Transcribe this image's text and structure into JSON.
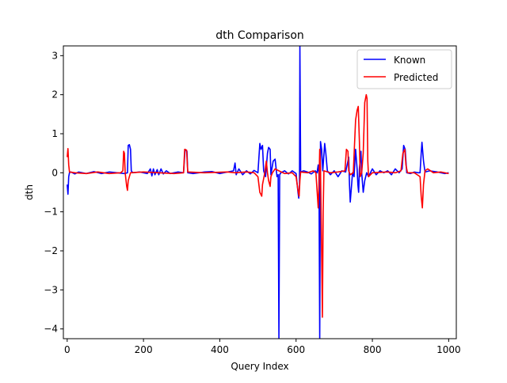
{
  "chart_data": {
    "type": "line",
    "title": "dth Comparison",
    "xlabel": "Query Index",
    "ylabel": "dth",
    "xlim": [
      -10,
      1020
    ],
    "ylim": [
      -4.25,
      3.25
    ],
    "xticks": [
      0,
      200,
      400,
      600,
      800,
      1000
    ],
    "yticks": [
      -4,
      -3,
      -2,
      -1,
      0,
      1,
      2,
      3
    ],
    "grid": false,
    "legend_position": "top-right",
    "series": [
      {
        "name": "Known",
        "color": "#0000ff",
        "points": [
          [
            0,
            -0.3
          ],
          [
            2,
            -0.55
          ],
          [
            4,
            -0.1
          ],
          [
            6,
            0.0
          ],
          [
            10,
            0.02
          ],
          [
            20,
            -0.03
          ],
          [
            30,
            0.02
          ],
          [
            50,
            -0.02
          ],
          [
            70,
            0.03
          ],
          [
            90,
            -0.02
          ],
          [
            110,
            0.02
          ],
          [
            130,
            0.0
          ],
          [
            150,
            -0.02
          ],
          [
            158,
            0.0
          ],
          [
            160,
            0.7
          ],
          [
            163,
            0.72
          ],
          [
            166,
            0.6
          ],
          [
            168,
            0.05
          ],
          [
            172,
            0.0
          ],
          [
            190,
            0.02
          ],
          [
            210,
            -0.02
          ],
          [
            218,
            0.1
          ],
          [
            222,
            -0.08
          ],
          [
            226,
            0.1
          ],
          [
            230,
            -0.05
          ],
          [
            236,
            0.08
          ],
          [
            240,
            -0.05
          ],
          [
            246,
            0.1
          ],
          [
            252,
            -0.03
          ],
          [
            260,
            0.05
          ],
          [
            270,
            -0.02
          ],
          [
            290,
            0.02
          ],
          [
            305,
            0.0
          ],
          [
            309,
            0.6
          ],
          [
            314,
            0.55
          ],
          [
            316,
            0.0
          ],
          [
            330,
            -0.02
          ],
          [
            360,
            0.02
          ],
          [
            380,
            0.03
          ],
          [
            400,
            -0.02
          ],
          [
            420,
            0.02
          ],
          [
            436,
            0.05
          ],
          [
            440,
            0.25
          ],
          [
            443,
            -0.05
          ],
          [
            450,
            0.1
          ],
          [
            460,
            -0.05
          ],
          [
            470,
            0.05
          ],
          [
            480,
            -0.03
          ],
          [
            490,
            0.06
          ],
          [
            500,
            0.0
          ],
          [
            505,
            0.75
          ],
          [
            508,
            0.6
          ],
          [
            512,
            0.7
          ],
          [
            515,
            0.05
          ],
          [
            520,
            -0.1
          ],
          [
            525,
            0.5
          ],
          [
            528,
            0.65
          ],
          [
            532,
            0.6
          ],
          [
            534,
            -0.05
          ],
          [
            540,
            0.3
          ],
          [
            545,
            0.35
          ],
          [
            550,
            -0.1
          ],
          [
            553,
            -0.05
          ],
          [
            555,
            -4.25
          ],
          [
            557,
            -0.05
          ],
          [
            560,
            0.0
          ],
          [
            570,
            0.05
          ],
          [
            580,
            -0.03
          ],
          [
            590,
            0.05
          ],
          [
            600,
            -0.02
          ],
          [
            605,
            -0.5
          ],
          [
            607,
            -0.65
          ],
          [
            609,
            -0.3
          ],
          [
            610,
            3.25
          ],
          [
            612,
            0.02
          ],
          [
            620,
            0.05
          ],
          [
            630,
            0.02
          ],
          [
            640,
            -0.03
          ],
          [
            650,
            0.05
          ],
          [
            655,
            0.0
          ],
          [
            658,
            0.2
          ],
          [
            660,
            -0.05
          ],
          [
            662,
            -4.25
          ],
          [
            664,
            0.8
          ],
          [
            667,
            0.6
          ],
          [
            670,
            0.05
          ],
          [
            675,
            0.75
          ],
          [
            678,
            0.5
          ],
          [
            682,
            0.05
          ],
          [
            690,
            -0.05
          ],
          [
            700,
            0.05
          ],
          [
            710,
            -0.1
          ],
          [
            720,
            0.05
          ],
          [
            730,
            0.02
          ],
          [
            738,
            0.4
          ],
          [
            740,
            -0.3
          ],
          [
            742,
            -0.75
          ],
          [
            744,
            -0.5
          ],
          [
            748,
            0.0
          ],
          [
            752,
            -0.1
          ],
          [
            756,
            0.6
          ],
          [
            760,
            0.1
          ],
          [
            762,
            -0.3
          ],
          [
            764,
            -0.5
          ],
          [
            766,
            0.1
          ],
          [
            770,
            0.55
          ],
          [
            772,
            0.0
          ],
          [
            776,
            -0.5
          ],
          [
            780,
            -0.2
          ],
          [
            785,
            0.0
          ],
          [
            790,
            -0.1
          ],
          [
            800,
            0.1
          ],
          [
            810,
            -0.05
          ],
          [
            820,
            0.05
          ],
          [
            830,
            0.0
          ],
          [
            840,
            0.05
          ],
          [
            850,
            -0.05
          ],
          [
            860,
            0.1
          ],
          [
            870,
            0.0
          ],
          [
            878,
            0.1
          ],
          [
            882,
            0.7
          ],
          [
            886,
            0.6
          ],
          [
            890,
            0.0
          ],
          [
            900,
            -0.02
          ],
          [
            910,
            0.02
          ],
          [
            920,
            0.0
          ],
          [
            925,
            0.0
          ],
          [
            928,
            0.5
          ],
          [
            930,
            0.78
          ],
          [
            934,
            0.3
          ],
          [
            938,
            0.02
          ],
          [
            950,
            0.05
          ],
          [
            970,
            0.02
          ],
          [
            990,
            -0.02
          ],
          [
            1000,
            0.0
          ]
        ]
      },
      {
        "name": "Predicted",
        "color": "#ff0000",
        "points": [
          [
            0,
            0.4
          ],
          [
            2,
            0.62
          ],
          [
            4,
            0.2
          ],
          [
            6,
            0.02
          ],
          [
            20,
            0.0
          ],
          [
            50,
            -0.02
          ],
          [
            80,
            0.02
          ],
          [
            110,
            -0.02
          ],
          [
            140,
            0.0
          ],
          [
            146,
            0.05
          ],
          [
            148,
            0.55
          ],
          [
            150,
            0.5
          ],
          [
            152,
            0.0
          ],
          [
            156,
            -0.35
          ],
          [
            158,
            -0.45
          ],
          [
            160,
            -0.2
          ],
          [
            166,
            0.0
          ],
          [
            200,
            0.02
          ],
          [
            240,
            0.0
          ],
          [
            280,
            -0.02
          ],
          [
            305,
            0.0
          ],
          [
            308,
            0.6
          ],
          [
            313,
            0.58
          ],
          [
            316,
            0.02
          ],
          [
            360,
            0.0
          ],
          [
            420,
            0.02
          ],
          [
            440,
            0.0
          ],
          [
            470,
            0.02
          ],
          [
            490,
            0.0
          ],
          [
            500,
            -0.1
          ],
          [
            505,
            -0.5
          ],
          [
            510,
            -0.6
          ],
          [
            512,
            -0.3
          ],
          [
            518,
            0.0
          ],
          [
            522,
            0.3
          ],
          [
            525,
            0.0
          ],
          [
            528,
            -0.2
          ],
          [
            532,
            -0.35
          ],
          [
            534,
            -0.1
          ],
          [
            538,
            0.0
          ],
          [
            545,
            0.1
          ],
          [
            555,
            0.05
          ],
          [
            570,
            -0.02
          ],
          [
            590,
            0.0
          ],
          [
            600,
            -0.1
          ],
          [
            605,
            -0.45
          ],
          [
            608,
            -0.6
          ],
          [
            610,
            -0.2
          ],
          [
            612,
            0.02
          ],
          [
            630,
            0.0
          ],
          [
            645,
            0.05
          ],
          [
            652,
            0.0
          ],
          [
            658,
            -0.9
          ],
          [
            660,
            -0.3
          ],
          [
            662,
            0.6
          ],
          [
            664,
            0.1
          ],
          [
            667,
            -2.0
          ],
          [
            669,
            -3.7
          ],
          [
            671,
            -1.0
          ],
          [
            673,
            0.05
          ],
          [
            690,
            0.0
          ],
          [
            710,
            0.02
          ],
          [
            728,
            0.05
          ],
          [
            732,
            0.6
          ],
          [
            736,
            0.55
          ],
          [
            738,
            0.05
          ],
          [
            742,
            -0.05
          ],
          [
            750,
            0.0
          ],
          [
            756,
            1.35
          ],
          [
            760,
            1.6
          ],
          [
            763,
            1.7
          ],
          [
            766,
            0.8
          ],
          [
            768,
            -0.1
          ],
          [
            772,
            0.0
          ],
          [
            776,
            0.5
          ],
          [
            780,
            1.8
          ],
          [
            784,
            2.0
          ],
          [
            786,
            1.9
          ],
          [
            788,
            0.3
          ],
          [
            790,
            -0.1
          ],
          [
            800,
            0.0
          ],
          [
            840,
            0.02
          ],
          [
            860,
            0.0
          ],
          [
            875,
            0.05
          ],
          [
            880,
            0.5
          ],
          [
            885,
            0.6
          ],
          [
            888,
            0.2
          ],
          [
            892,
            0.0
          ],
          [
            910,
            0.0
          ],
          [
            925,
            -0.1
          ],
          [
            928,
            -0.6
          ],
          [
            931,
            -0.9
          ],
          [
            934,
            -0.3
          ],
          [
            938,
            0.05
          ],
          [
            945,
            0.1
          ],
          [
            960,
            0.0
          ],
          [
            980,
            0.02
          ],
          [
            1000,
            -0.02
          ]
        ]
      }
    ]
  }
}
